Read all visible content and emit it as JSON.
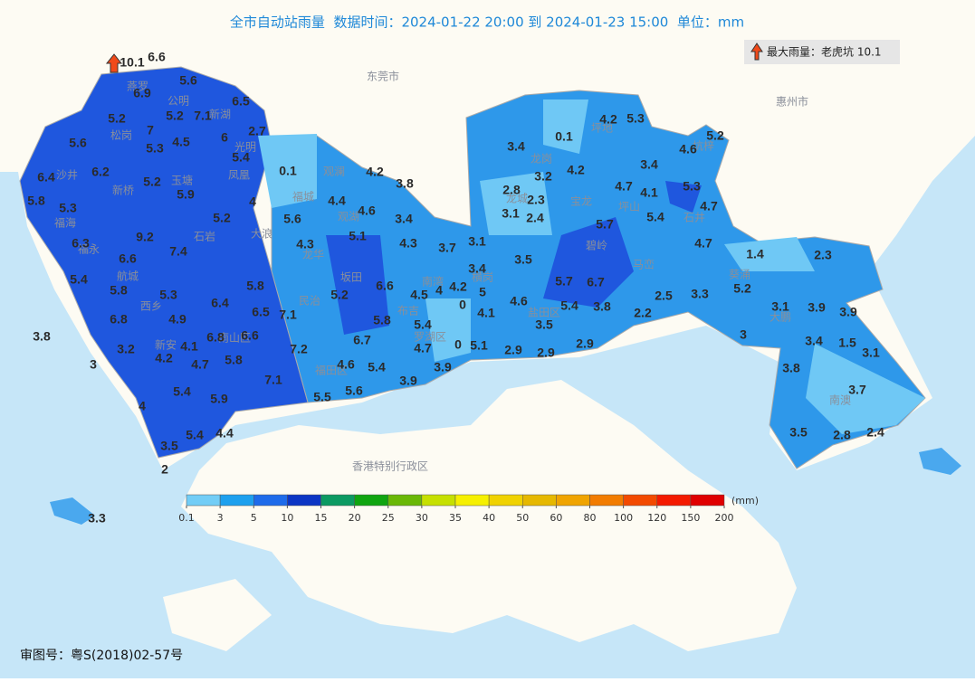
{
  "header": {
    "title": "全市自动站雨量  数据时间：2024-01-22 20:00 到 2024-01-23 15:00  单位：mm"
  },
  "max_badge": "最大雨量：老虎坑 10.1",
  "footer": "审图号：粤S(2018)02-57号",
  "places": [
    "东莞市",
    "惠州市",
    "香港特别行政区",
    "燕罗",
    "公明",
    "新湖",
    "松岗",
    "光明",
    "沙井",
    "玉塘",
    "凤凰",
    "新桥",
    "观澜",
    "福城",
    "观湖",
    "福海",
    "石岩",
    "大浪",
    "龙华",
    "福永",
    "航城",
    "西乡",
    "民治",
    "坂田",
    "南湾",
    "布吉",
    "新安",
    "南山区",
    "福田区",
    "罗湖区",
    "龙岗",
    "坪地",
    "坑梓",
    "龙城",
    "宝龙",
    "坪山",
    "石井",
    "碧岭",
    "马峦",
    "葵涌",
    "横岗",
    "盐田区",
    "大鹏",
    "南澳"
  ],
  "stations": [
    10.1,
    6.6,
    5.6,
    6.9,
    6.5,
    5.2,
    5.2,
    7.1,
    7,
    6,
    2.7,
    5.6,
    5.3,
    4.5,
    5.4,
    0.1,
    4.2,
    6.4,
    6.2,
    5.2,
    5.9,
    3.8,
    5.8,
    4,
    4.4,
    5.3,
    4.6,
    5.2,
    5.6,
    3.4,
    9.2,
    6.3,
    5.1,
    4.3,
    4.3,
    3.7,
    7.4,
    6.6,
    5.4,
    5.8,
    5.3,
    6.4,
    5.8,
    5.2,
    6.6,
    4.5,
    4,
    4.2,
    5,
    6.5,
    7.1,
    6.8,
    4.9,
    5.8,
    5.4,
    0,
    4.1,
    3.8,
    3.2,
    4.1,
    6.8,
    6.6,
    6.7,
    4.7,
    0,
    5.1,
    2.9,
    7.2,
    4.2,
    4.7,
    5.8,
    3,
    4.6,
    5.4,
    3.9,
    2.9,
    7.1,
    3.9,
    5.4,
    5.6,
    5.5,
    5.9,
    4,
    5.4,
    4.4,
    3.5,
    2,
    3.3,
    3.4,
    0.1,
    4.2,
    5.3,
    5.2,
    4.6,
    3.2,
    4.2,
    3.4,
    2.8,
    2.3,
    4.7,
    4.1,
    5.3,
    3.1,
    2.4,
    5.7,
    5.4,
    4.7,
    3.1,
    3.5,
    4.7,
    1.4,
    2.3,
    3.4,
    5.7,
    6.7,
    5.2,
    4.6,
    5.4,
    3.8,
    2.5,
    3.3,
    3.1,
    3.9,
    3.9,
    2.2,
    3.5,
    3,
    2.9,
    3.4,
    1.5,
    3.1,
    3.8,
    3.7,
    3.5,
    2.8,
    2.4
  ],
  "legend": {
    "unit": "(mm)",
    "colors": [
      "#72cdf6",
      "#1da0ee",
      "#1e6bea",
      "#0c35c4",
      "#0c9a62",
      "#10a510",
      "#6ab806",
      "#c6e000",
      "#f6f000",
      "#f0d200",
      "#e6b800",
      "#f0a400",
      "#f27c00",
      "#f34a00",
      "#f41a00",
      "#e00000"
    ],
    "ticks": [
      0.1,
      3,
      5,
      10,
      15,
      20,
      25,
      30,
      35,
      40,
      50,
      60,
      80,
      100,
      120,
      150,
      200
    ]
  }
}
